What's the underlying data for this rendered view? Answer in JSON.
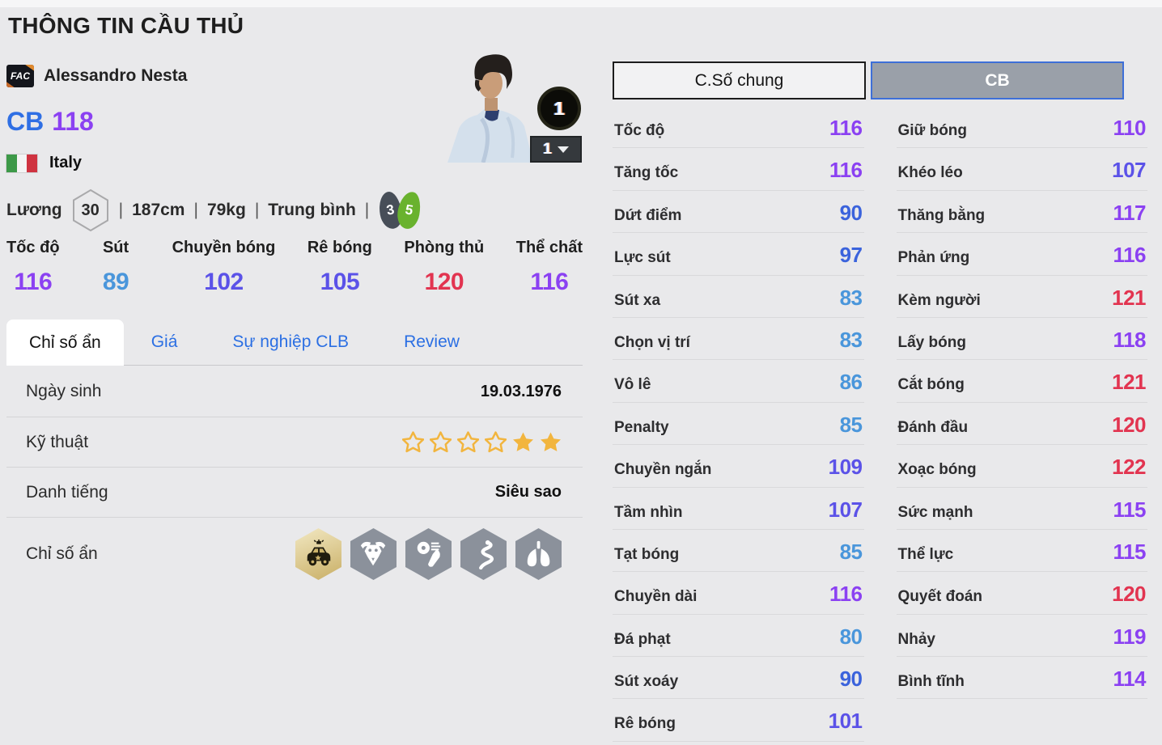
{
  "page": {
    "title": "THÔNG TIN CẦU THỦ"
  },
  "player": {
    "badge": "FAC",
    "name": "Alessandro Nesta",
    "position": "CB",
    "ovr": "118",
    "nation": "Italy",
    "salary_label": "Lương",
    "salary": "30",
    "meta_items": [
      "187cm",
      "79kg",
      "Trung bình"
    ],
    "separator": "|",
    "weak_foot": "3",
    "strong_foot": "5",
    "level_badge": "1",
    "level_selected": "1"
  },
  "summary_stats": [
    {
      "label": "Tốc độ",
      "value": 116
    },
    {
      "label": "Sút",
      "value": 89
    },
    {
      "label": "Chuyền bóng",
      "value": 102
    },
    {
      "label": "Rê bóng",
      "value": 105
    },
    {
      "label": "Phòng thủ",
      "value": 120
    },
    {
      "label": "Thể chất",
      "value": 116
    }
  ],
  "tabs": [
    {
      "label": "Chỉ số ẩn",
      "active": true
    },
    {
      "label": "Giá",
      "active": false
    },
    {
      "label": "Sự nghiệp CLB",
      "active": false
    },
    {
      "label": "Review",
      "active": false
    }
  ],
  "info_rows": {
    "birth_label": "Ngày sinh",
    "birth_value": "19.03.1976",
    "skill_label": "Kỹ thuật",
    "skill_stars": [
      "empty",
      "empty",
      "empty",
      "empty",
      "filled",
      "filled"
    ],
    "fame_label": "Danh tiếng",
    "fame_value": "Siêu sao",
    "hidden_label": "Chỉ số ẩn",
    "hidden_icons": [
      "police-car",
      "buffalo",
      "power-shot",
      "snake",
      "lungs"
    ]
  },
  "stats_panel": {
    "tab_general": "C.Số chung",
    "tab_position": "CB",
    "left": [
      {
        "label": "Tốc độ",
        "value": 116
      },
      {
        "label": "Tăng tốc",
        "value": 116
      },
      {
        "label": "Dứt điểm",
        "value": 90
      },
      {
        "label": "Lực sút",
        "value": 97
      },
      {
        "label": "Sút xa",
        "value": 83
      },
      {
        "label": "Chọn vị trí",
        "value": 83
      },
      {
        "label": "Vô lê",
        "value": 86
      },
      {
        "label": "Penalty",
        "value": 85
      },
      {
        "label": "Chuyền ngắn",
        "value": 109
      },
      {
        "label": "Tầm nhìn",
        "value": 107
      },
      {
        "label": "Tạt bóng",
        "value": 85
      },
      {
        "label": "Chuyền dài",
        "value": 116
      },
      {
        "label": "Đá phạt",
        "value": 80
      },
      {
        "label": "Sút xoáy",
        "value": 90
      },
      {
        "label": "Rê bóng",
        "value": 101
      }
    ],
    "right": [
      {
        "label": "Giữ bóng",
        "value": 110
      },
      {
        "label": "Khéo léo",
        "value": 107
      },
      {
        "label": "Thăng bằng",
        "value": 117
      },
      {
        "label": "Phản ứng",
        "value": 116
      },
      {
        "label": "Kèm người",
        "value": 121
      },
      {
        "label": "Lấy bóng",
        "value": 118
      },
      {
        "label": "Cắt bóng",
        "value": 121
      },
      {
        "label": "Đánh đầu",
        "value": 120
      },
      {
        "label": "Xoạc bóng",
        "value": 122
      },
      {
        "label": "Sức mạnh",
        "value": 115
      },
      {
        "label": "Thể lực",
        "value": 115
      },
      {
        "label": "Quyết đoán",
        "value": 120
      },
      {
        "label": "Nhảy",
        "value": 119
      },
      {
        "label": "Bình tĩnh",
        "value": 114
      }
    ]
  },
  "colors": {
    "tier_80": "#4a96db",
    "tier_90": "#3b63dc",
    "tier_100": "#5b52e8",
    "tier_110": "#8b41f2",
    "tier_120": "#e23450",
    "position_blue": "#2f6fe4",
    "ovr_purple": "#8b41f2",
    "tab_link_blue": "#2b6fe3",
    "star_gold": "#f2b53e",
    "flag_green": "#3d9948",
    "flag_white": "#f4f4f4",
    "flag_red": "#cf3340"
  }
}
